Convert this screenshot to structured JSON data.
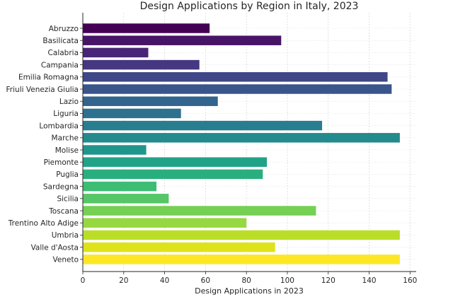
{
  "chart_data": {
    "type": "bar",
    "orientation": "horizontal",
    "title": "Design Applications by Region in Italy, 2023",
    "xlabel": "Design Applications in 2023",
    "ylabel": "",
    "xlim": [
      0,
      163
    ],
    "x_ticks": [
      0,
      20,
      40,
      60,
      80,
      100,
      120,
      140,
      160
    ],
    "grid": true,
    "legend": "none",
    "colormap": "viridis",
    "categories": [
      "Abruzzo",
      "Basilicata",
      "Calabria",
      "Campania",
      "Emilia Romagna",
      "Friuli Venezia Giulia",
      "Lazio",
      "Liguria",
      "Lombardia",
      "Marche",
      "Molise",
      "Piemonte",
      "Puglia",
      "Sardegna",
      "Sicilia",
      "Toscana",
      "Trentino Alto Adige",
      "Umbria",
      "Valle d'Aosta",
      "Veneto"
    ],
    "values": [
      62,
      97,
      32,
      57,
      149,
      151,
      66,
      48,
      117,
      155,
      31,
      90,
      88,
      36,
      42,
      114,
      80,
      155,
      94,
      155
    ],
    "colors": [
      "#440154",
      "#481467",
      "#482576",
      "#453781",
      "#3f4788",
      "#39558c",
      "#32648e",
      "#2d718e",
      "#287d8e",
      "#238a8d",
      "#1f968b",
      "#20a386",
      "#29af7f",
      "#3dbc74",
      "#56c667",
      "#75d054",
      "#95d840",
      "#bade28",
      "#dde318",
      "#fde725"
    ]
  }
}
